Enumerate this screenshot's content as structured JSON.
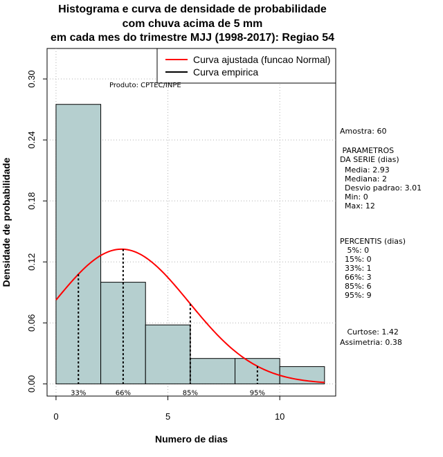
{
  "chart_data": {
    "type": "bar",
    "title_lines": [
      "Histograma e curva de densidade de probabilidade",
      "com chuva acima de 5 mm",
      "em cada mes do trimestre MJJ (1998-2017): Regiao 54"
    ],
    "xlabel": "Numero de dias",
    "ylabel": "Densidade de probabilidade",
    "xlim": [
      -0.4,
      12.5
    ],
    "ylim": [
      -0.012,
      0.33
    ],
    "x_ticks": [
      0,
      5,
      10
    ],
    "y_ticks": [
      "0.00",
      "0.06",
      "0.12",
      "0.18",
      "0.24",
      "0.30"
    ],
    "grid": true,
    "bins": [
      {
        "x0": 0,
        "x1": 2,
        "density": 0.275
      },
      {
        "x0": 2,
        "x1": 4,
        "density": 0.1
      },
      {
        "x0": 4,
        "x1": 6,
        "density": 0.058
      },
      {
        "x0": 6,
        "x1": 8,
        "density": 0.025
      },
      {
        "x0": 8,
        "x1": 10,
        "density": 0.025
      },
      {
        "x0": 10,
        "x1": 12,
        "density": 0.017
      }
    ],
    "fitted_normal": {
      "mean": 2.93,
      "sd": 3.01,
      "x_range": [
        0,
        12
      ]
    },
    "percentile_markers": [
      {
        "x": 1,
        "label": "33%"
      },
      {
        "x": 3,
        "label": "66%"
      },
      {
        "x": 6,
        "label": "85%"
      },
      {
        "x": 9,
        "label": "95%"
      }
    ],
    "legend": {
      "position": "top-right",
      "entries": [
        {
          "label": "Curva ajustada (funcao Normal)",
          "color": "#ff0000"
        },
        {
          "label": "Curva empirica",
          "color": "#000000"
        }
      ]
    },
    "credit": "Produto: CPTEC/INPE",
    "colors": {
      "bar_fill": "#b5cfcf",
      "curve": "#ff0000",
      "grid": "#b0b0b0"
    }
  },
  "side_panel": {
    "sample": "Amostra: 60",
    "params_header": " PARAMETROS\nDA SERIE (dias)",
    "params": "  Media: 2.93\n  Mediana: 2\n  Desvio padrao: 3.01\n  Min: 0\n  Max: 12",
    "percentis_header": "PERCENTIS (dias)",
    "percentis": "   5%: 0\n  15%: 0\n  33%: 1\n  66%: 3\n  85%: 6\n  95%: 9",
    "curtose": "   Curtose: 1.42",
    "assimetria": "Assimetria: 0.38"
  }
}
